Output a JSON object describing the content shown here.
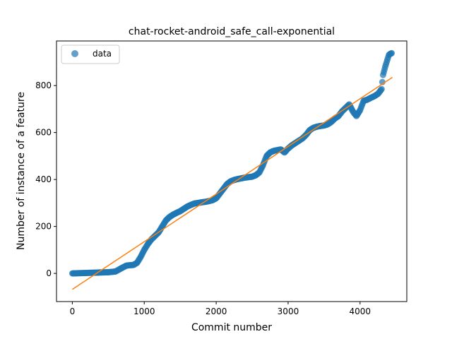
{
  "chart_data": {
    "type": "scatter",
    "title": "chat-rocket-android_safe_call-exponential",
    "xlabel": "Commit number",
    "ylabel": "Number of instance of a feature",
    "xlim": [
      -220,
      4650
    ],
    "ylim": [
      -120,
      990
    ],
    "xticks": [
      0,
      1000,
      2000,
      3000,
      4000
    ],
    "yticks": [
      0,
      200,
      400,
      600,
      800
    ],
    "grid": false,
    "legend_position": "top-left",
    "colors": {
      "data": "#1f77b4",
      "fit": "#ff7f0e"
    },
    "series": [
      {
        "name": "data",
        "kind": "points",
        "points": [
          [
            0,
            0
          ],
          [
            100,
            1
          ],
          [
            200,
            2
          ],
          [
            300,
            3
          ],
          [
            400,
            4
          ],
          [
            500,
            5
          ],
          [
            600,
            8
          ],
          [
            700,
            25
          ],
          [
            750,
            33
          ],
          [
            800,
            35
          ],
          [
            850,
            36
          ],
          [
            900,
            45
          ],
          [
            950,
            70
          ],
          [
            1000,
            100
          ],
          [
            1050,
            125
          ],
          [
            1100,
            145
          ],
          [
            1150,
            160
          ],
          [
            1200,
            175
          ],
          [
            1250,
            200
          ],
          [
            1300,
            225
          ],
          [
            1350,
            240
          ],
          [
            1400,
            250
          ],
          [
            1450,
            258
          ],
          [
            1500,
            265
          ],
          [
            1550,
            275
          ],
          [
            1600,
            285
          ],
          [
            1650,
            292
          ],
          [
            1700,
            298
          ],
          [
            1750,
            300
          ],
          [
            1800,
            303
          ],
          [
            1850,
            305
          ],
          [
            1900,
            308
          ],
          [
            1950,
            312
          ],
          [
            2000,
            320
          ],
          [
            2050,
            340
          ],
          [
            2100,
            360
          ],
          [
            2150,
            380
          ],
          [
            2200,
            392
          ],
          [
            2250,
            398
          ],
          [
            2300,
            402
          ],
          [
            2350,
            405
          ],
          [
            2400,
            408
          ],
          [
            2450,
            410
          ],
          [
            2500,
            412
          ],
          [
            2550,
            418
          ],
          [
            2600,
            430
          ],
          [
            2650,
            460
          ],
          [
            2700,
            500
          ],
          [
            2750,
            515
          ],
          [
            2800,
            522
          ],
          [
            2850,
            525
          ],
          [
            2900,
            528
          ],
          [
            2950,
            515
          ],
          [
            3000,
            532
          ],
          [
            3050,
            545
          ],
          [
            3100,
            555
          ],
          [
            3150,
            565
          ],
          [
            3200,
            575
          ],
          [
            3250,
            590
          ],
          [
            3300,
            610
          ],
          [
            3350,
            620
          ],
          [
            3400,
            625
          ],
          [
            3450,
            628
          ],
          [
            3500,
            630
          ],
          [
            3550,
            635
          ],
          [
            3600,
            645
          ],
          [
            3650,
            660
          ],
          [
            3700,
            670
          ],
          [
            3750,
            690
          ],
          [
            3800,
            705
          ],
          [
            3850,
            720
          ],
          [
            3900,
            690
          ],
          [
            3950,
            670
          ],
          [
            4000,
            695
          ],
          [
            4050,
            735
          ],
          [
            4100,
            740
          ],
          [
            4150,
            748
          ],
          [
            4200,
            755
          ],
          [
            4250,
            765
          ],
          [
            4300,
            785
          ],
          [
            4320,
            845
          ],
          [
            4350,
            880
          ],
          [
            4380,
            910
          ],
          [
            4400,
            930
          ],
          [
            4420,
            935
          ],
          [
            4440,
            938
          ]
        ]
      },
      {
        "name": "",
        "kind": "line",
        "points": [
          [
            0,
            -68
          ],
          [
            4450,
            835
          ]
        ]
      }
    ]
  },
  "legend": {
    "label": "data"
  }
}
